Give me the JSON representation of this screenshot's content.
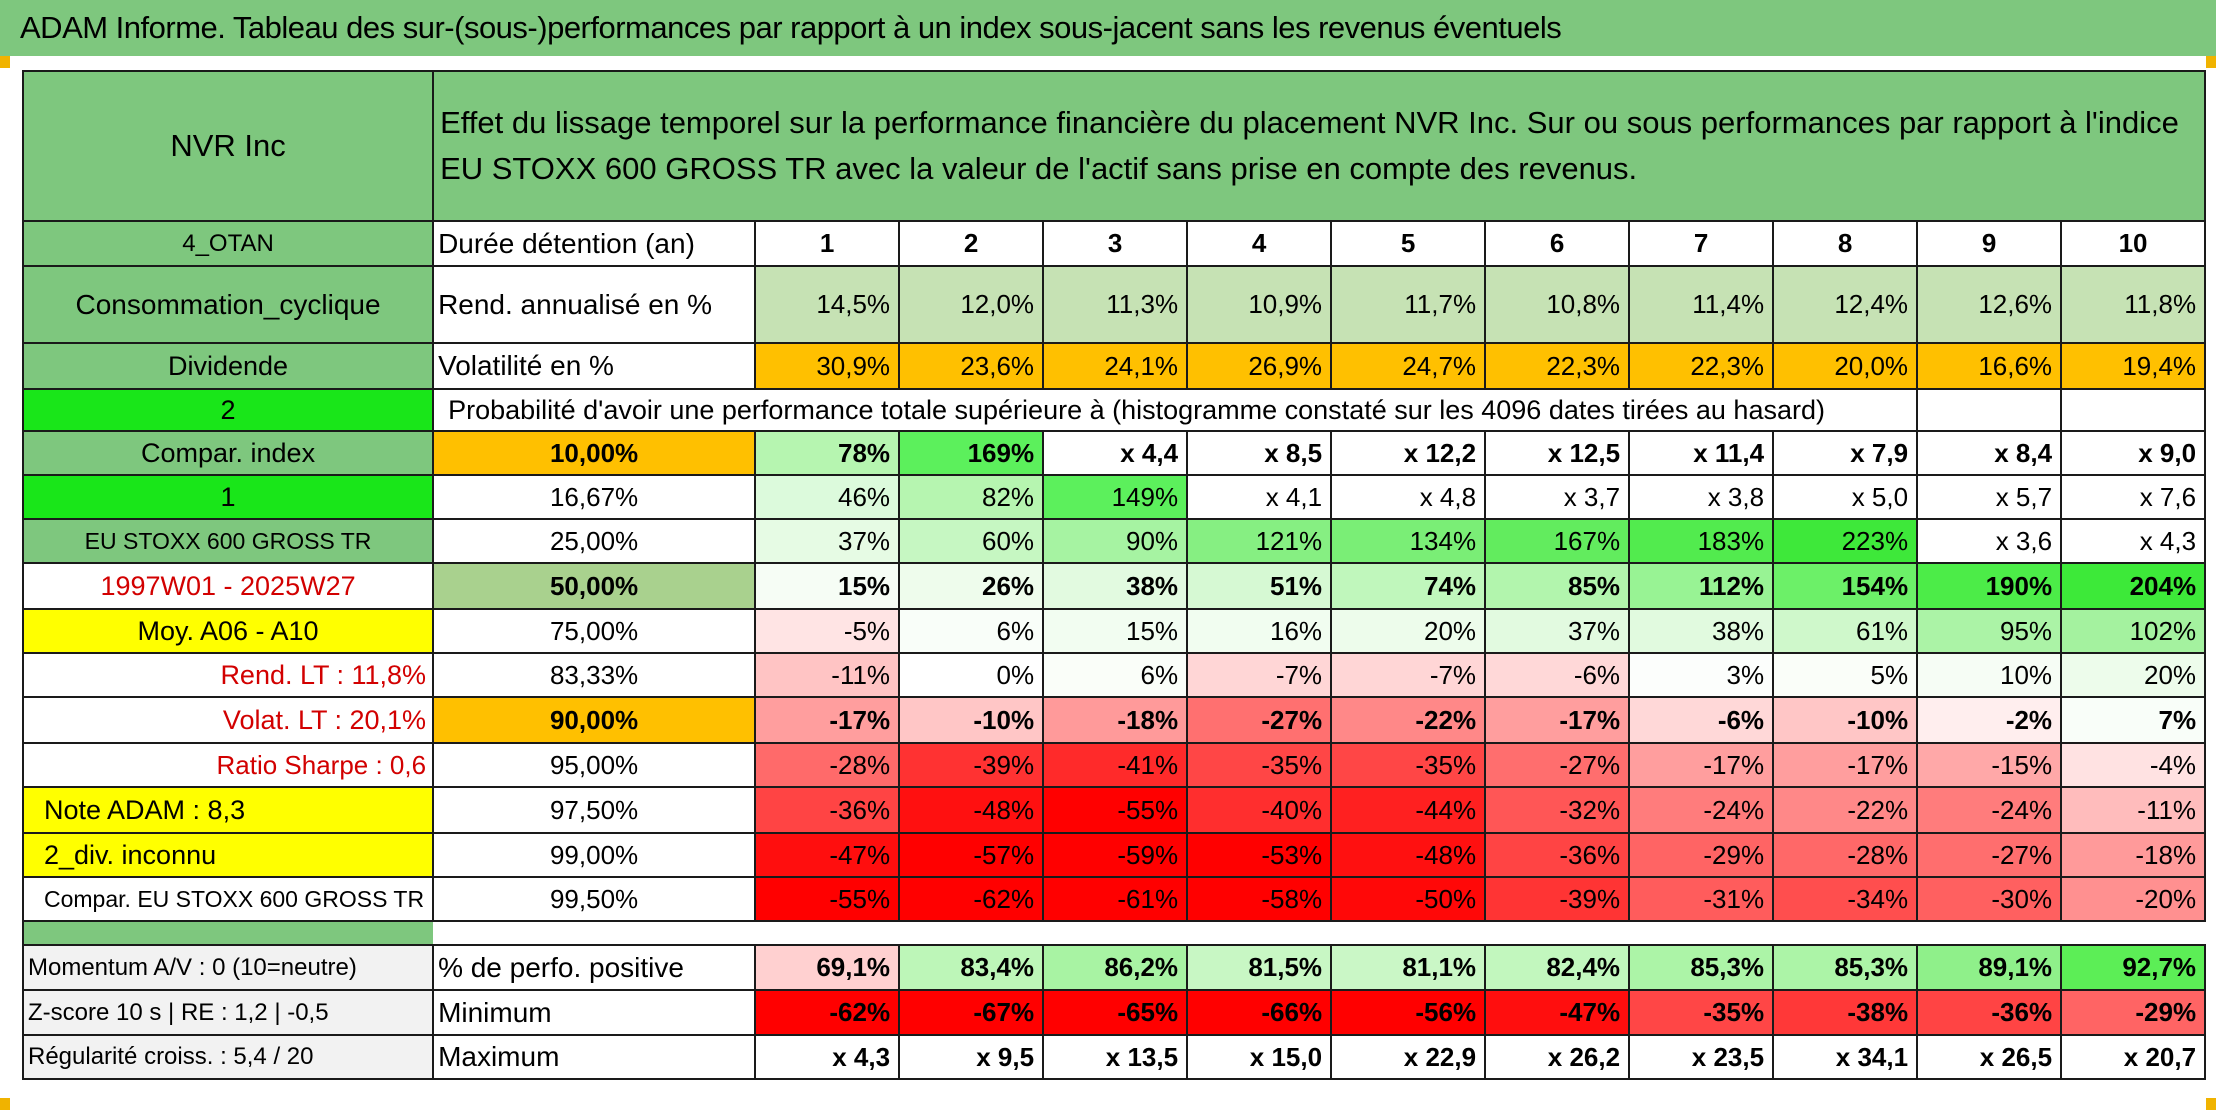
{
  "title": "ADAM Informe. Tableau des sur-(sous-)performances par rapport à un index sous-jacent sans les revenus éventuels",
  "colors": {
    "header_green": "#7ec77e",
    "bright_green": "#19e619",
    "orange": "#ffc000",
    "yellow": "#ffff00",
    "pale_green": "#c6e2b4",
    "dark_red": "#ff0000"
  },
  "side": {
    "company": "NVR Inc",
    "code": "4_OTAN",
    "sector": "Consommation_cyclique",
    "dividend": "Dividende",
    "num2": "2",
    "compar_index": "Compar. index",
    "num1": "1",
    "index_name": "EU STOXX 600 GROSS TR",
    "period": "1997W01 - 2025W27",
    "moy": "Moy. A06 - A10",
    "rend_lt": "Rend. LT :   11,8%",
    "volat_lt": "Volat. LT :   20,1%",
    "sharpe": "Ratio Sharpe :   0,6",
    "note": "Note ADAM : 8,3",
    "div_unknown": "2_div. inconnu",
    "compar_full": "Compar. EU STOXX 600 GROSS TR",
    "momentum": "Momentum A/V : 0 (10=neutre)",
    "zscore": "Z-score 10 s | RE : 1,2 | -0,5",
    "regularite": "Régularité croiss. : 5,4 / 20"
  },
  "header": {
    "description": "Effet du lissage temporel sur la performance financière du placement NVR Inc. Sur ou sous performances par rapport à l'indice EU STOXX 600 GROSS TR avec la valeur de l'actif sans prise en compte des revenus."
  },
  "labels": {
    "duree": "Durée détention (an)",
    "rend": "Rend. annualisé en %",
    "volat": "Volatilité en %",
    "proba": "Probabilité d'avoir une performance totale supérieure à (histogramme constaté sur les 4096 dates tirées au hasard)",
    "positive": "% de perfo. positive",
    "minimum": "Minimum",
    "maximum": "Maximum"
  },
  "years": [
    "1",
    "2",
    "3",
    "4",
    "5",
    "6",
    "7",
    "8",
    "9",
    "10"
  ],
  "rend_values": [
    "14,5%",
    "12,0%",
    "11,3%",
    "10,9%",
    "11,7%",
    "10,8%",
    "11,4%",
    "12,4%",
    "12,6%",
    "11,8%"
  ],
  "volat_values": [
    "30,9%",
    "23,6%",
    "24,1%",
    "26,9%",
    "24,7%",
    "22,3%",
    "22,3%",
    "20,0%",
    "16,6%",
    "19,4%"
  ],
  "prob_rows": [
    {
      "pct": "10,00%",
      "values": [
        "78%",
        "169%",
        "x 4,4",
        "x 8,5",
        "x 12,2",
        "x 12,5",
        "x 11,4",
        "x 7,9",
        "x 8,4",
        "x 9,0"
      ],
      "colors": [
        "#b6f5b0",
        "#5cf05c",
        "#ffffff",
        "#ffffff",
        "#ffffff",
        "#ffffff",
        "#ffffff",
        "#ffffff",
        "#ffffff",
        "#ffffff"
      ]
    },
    {
      "pct": "16,67%",
      "values": [
        "46%",
        "82%",
        "149%",
        "x 4,1",
        "x 4,8",
        "x 3,7",
        "x 3,8",
        "x 5,0",
        "x 5,7",
        "x 7,6"
      ],
      "colors": [
        "#dcfadc",
        "#b6f5b0",
        "#5cf05c",
        "#ffffff",
        "#ffffff",
        "#ffffff",
        "#ffffff",
        "#ffffff",
        "#ffffff",
        "#ffffff"
      ]
    },
    {
      "pct": "25,00%",
      "values": [
        "37%",
        "60%",
        "90%",
        "121%",
        "134%",
        "167%",
        "183%",
        "223%",
        "x 3,6",
        "x 4,3"
      ],
      "colors": [
        "#e6fbe4",
        "#c6f7c2",
        "#a6f3a2",
        "#86ef82",
        "#7aee76",
        "#62ec5e",
        "#52eb4e",
        "#3ee83a",
        "#ffffff",
        "#ffffff"
      ]
    },
    {
      "pct": "50,00%",
      "values": [
        "15%",
        "26%",
        "38%",
        "51%",
        "74%",
        "85%",
        "112%",
        "154%",
        "190%",
        "204%"
      ],
      "colors": [
        "#f6fdf5",
        "#eefcec",
        "#e2fae0",
        "#d6f9d3",
        "#c0f7bc",
        "#b2f5ad",
        "#98f394",
        "#6cf068",
        "#4cec48",
        "#3de939"
      ]
    },
    {
      "pct": "75,00%",
      "values": [
        "-5%",
        "6%",
        "15%",
        "16%",
        "20%",
        "37%",
        "38%",
        "61%",
        "95%",
        "102%"
      ],
      "colors": [
        "#ffe4e4",
        "#f9fef9",
        "#f2fdf1",
        "#f1fdf0",
        "#edfceb",
        "#e2fae0",
        "#e1fadf",
        "#cff8cb",
        "#abf3a6",
        "#a4f29f"
      ]
    },
    {
      "pct": "83,33%",
      "values": [
        "-11%",
        "0%",
        "6%",
        "-7%",
        "-7%",
        "-6%",
        "3%",
        "5%",
        "10%",
        "20%"
      ],
      "colors": [
        "#ffc4c4",
        "#ffffff",
        "#fafef9",
        "#ffd6d6",
        "#ffd6d6",
        "#ffd8d8",
        "#fcfefc",
        "#fafef9",
        "#f6fdf5",
        "#edfceb"
      ]
    },
    {
      "pct": "90,00%",
      "values": [
        "-17%",
        "-10%",
        "-18%",
        "-27%",
        "-22%",
        "-17%",
        "-6%",
        "-10%",
        "-2%",
        "7%"
      ],
      "colors": [
        "#ff9e9e",
        "#ffc6c6",
        "#ff9a9a",
        "#ff7070",
        "#ff8888",
        "#ff9e9e",
        "#ffd8d8",
        "#ffc6c6",
        "#ffeeee",
        "#f9fef9"
      ]
    },
    {
      "pct": "95,00%",
      "values": [
        "-28%",
        "-39%",
        "-41%",
        "-35%",
        "-35%",
        "-27%",
        "-17%",
        "-17%",
        "-15%",
        "-4%"
      ],
      "colors": [
        "#ff6a6a",
        "#ff3232",
        "#ff2a2a",
        "#ff4646",
        "#ff4646",
        "#ff6e6e",
        "#ff9e9e",
        "#ff9e9e",
        "#ffa8a8",
        "#ffe2e2"
      ]
    },
    {
      "pct": "97,50%",
      "values": [
        "-36%",
        "-48%",
        "-55%",
        "-40%",
        "-44%",
        "-32%",
        "-24%",
        "-22%",
        "-24%",
        "-11%"
      ],
      "colors": [
        "#ff4444",
        "#ff1010",
        "#ff0000",
        "#ff2e2e",
        "#ff2020",
        "#ff5656",
        "#ff7c7c",
        "#ff8888",
        "#ff7c7c",
        "#ffbcbc"
      ]
    },
    {
      "pct": "99,00%",
      "values": [
        "-47%",
        "-57%",
        "-59%",
        "-53%",
        "-48%",
        "-36%",
        "-29%",
        "-28%",
        "-27%",
        "-18%"
      ],
      "colors": [
        "#ff0e0e",
        "#ff0000",
        "#ff0000",
        "#ff0000",
        "#ff1010",
        "#ff4444",
        "#ff6464",
        "#ff6868",
        "#ff6e6e",
        "#ff9a9a"
      ]
    },
    {
      "pct": "99,50%",
      "values": [
        "-55%",
        "-62%",
        "-61%",
        "-58%",
        "-50%",
        "-39%",
        "-31%",
        "-34%",
        "-30%",
        "-20%"
      ],
      "colors": [
        "#ff0000",
        "#ff0000",
        "#ff0000",
        "#ff0000",
        "#ff0808",
        "#ff3434",
        "#ff5c5c",
        "#ff4e4e",
        "#ff6060",
        "#ff9090"
      ]
    }
  ],
  "positive_values": [
    "69,1%",
    "83,4%",
    "86,2%",
    "81,5%",
    "81,1%",
    "82,4%",
    "85,3%",
    "85,3%",
    "89,1%",
    "92,7%"
  ],
  "positive_colors": [
    "#ffd0d0",
    "#bdf6b8",
    "#a8f3a3",
    "#c8f7c4",
    "#caf7c6",
    "#c2f7be",
    "#acf4a7",
    "#acf4a7",
    "#8ff08a",
    "#5cee56"
  ],
  "minimum_values": [
    "-62%",
    "-67%",
    "-65%",
    "-66%",
    "-56%",
    "-47%",
    "-35%",
    "-38%",
    "-36%",
    "-29%"
  ],
  "minimum_colors": [
    "#ff0000",
    "#ff0000",
    "#ff0000",
    "#ff0000",
    "#ff0000",
    "#ff0e0e",
    "#ff4646",
    "#ff3838",
    "#ff4444",
    "#ff6464"
  ],
  "maximum_values": [
    "x 4,3",
    "x 9,5",
    "x 13,5",
    "x 15,0",
    "x 22,9",
    "x 26,2",
    "x 23,5",
    "x 34,1",
    "x 26,5",
    "x 20,7"
  ]
}
